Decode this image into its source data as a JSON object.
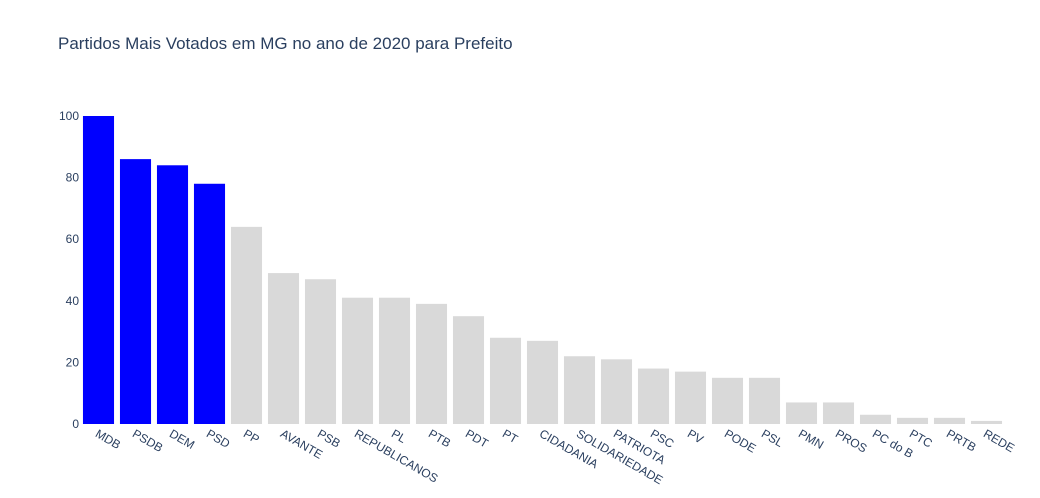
{
  "chart_data": {
    "type": "bar",
    "title": "Partidos Mais Votados em MG no ano de 2020 para Prefeito",
    "xlabel": "",
    "ylabel": "",
    "ylim": [
      0,
      100
    ],
    "yticks": [
      0,
      20,
      40,
      60,
      80,
      100
    ],
    "grid": false,
    "categories": [
      "MDB",
      "PSDB",
      "DEM",
      "PSD",
      "PP",
      "AVANTE",
      "PSB",
      "REPUBLICANOS",
      "PL",
      "PTB",
      "PDT",
      "PT",
      "CIDADANIA",
      "SOLIDARIEDADE",
      "PATRIOTA",
      "PSC",
      "PV",
      "PODE",
      "PSL",
      "PMN",
      "PROS",
      "PC do B",
      "PTC",
      "PRTB",
      "REDE"
    ],
    "values": [
      100,
      86,
      84,
      78,
      64,
      49,
      47,
      41,
      41,
      39,
      35,
      28,
      27,
      22,
      21,
      18,
      17,
      15,
      15,
      7,
      7,
      3,
      2,
      2,
      1
    ],
    "colors": [
      "#0000ff",
      "#0000ff",
      "#0000ff",
      "#0000ff",
      "#d9d9d9",
      "#d9d9d9",
      "#d9d9d9",
      "#d9d9d9",
      "#d9d9d9",
      "#d9d9d9",
      "#d9d9d9",
      "#d9d9d9",
      "#d9d9d9",
      "#d9d9d9",
      "#d9d9d9",
      "#d9d9d9",
      "#d9d9d9",
      "#d9d9d9",
      "#d9d9d9",
      "#d9d9d9",
      "#d9d9d9",
      "#d9d9d9",
      "#d9d9d9",
      "#d9d9d9",
      "#d9d9d9"
    ]
  }
}
